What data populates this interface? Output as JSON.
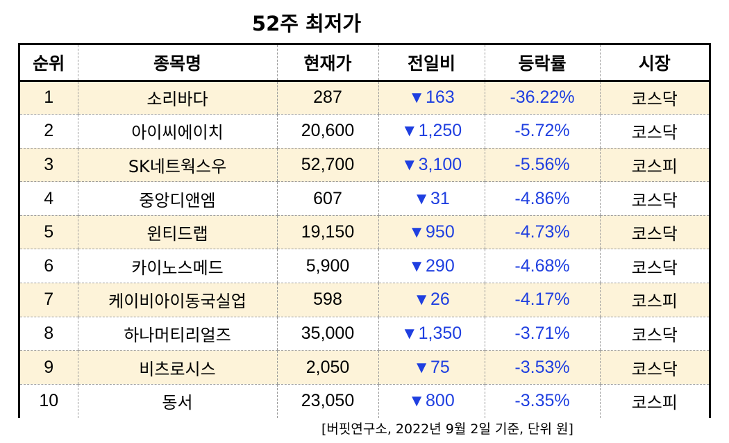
{
  "title": "52주 최저가",
  "headers": [
    "순위",
    "종목명",
    "현재가",
    "전일비",
    "등락률",
    "시장"
  ],
  "down_arrow": "▼",
  "rows": [
    {
      "rank": "1",
      "name": "소리바다",
      "price": "287",
      "change": "163",
      "rate": "-36.22%",
      "market": "코스닥"
    },
    {
      "rank": "2",
      "name": "아이씨에이치",
      "price": "20,600",
      "change": "1,250",
      "rate": "-5.72%",
      "market": "코스닥"
    },
    {
      "rank": "3",
      "name": "SK네트웍스우",
      "price": "52,700",
      "change": "3,100",
      "rate": "-5.56%",
      "market": "코스피"
    },
    {
      "rank": "4",
      "name": "중앙디앤엠",
      "price": "607",
      "change": "31",
      "rate": "-4.86%",
      "market": "코스닥"
    },
    {
      "rank": "5",
      "name": "윈티드랩",
      "price": "19,150",
      "change": "950",
      "rate": "-4.73%",
      "market": "코스닥"
    },
    {
      "rank": "6",
      "name": "카이노스메드",
      "price": "5,900",
      "change": "290",
      "rate": "-4.68%",
      "market": "코스닥"
    },
    {
      "rank": "7",
      "name": "케이비아이동국실업",
      "price": "598",
      "change": "26",
      "rate": "-4.17%",
      "market": "코스피"
    },
    {
      "rank": "8",
      "name": "하나머티리얼즈",
      "price": "35,000",
      "change": "1,350",
      "rate": "-3.71%",
      "market": "코스닥"
    },
    {
      "rank": "9",
      "name": "비츠로시스",
      "price": "2,050",
      "change": "75",
      "rate": "-3.53%",
      "market": "코스닥"
    },
    {
      "rank": "10",
      "name": "동서",
      "price": "23,050",
      "change": "800",
      "rate": "-3.35%",
      "market": "코스피"
    }
  ],
  "footnote": "[버핏연구소, 2022년 9월 2일 기준, 단위 원]",
  "colors": {
    "row_alt": "#fdf3d9",
    "down": "#1f3fe0",
    "border": "#000000"
  }
}
